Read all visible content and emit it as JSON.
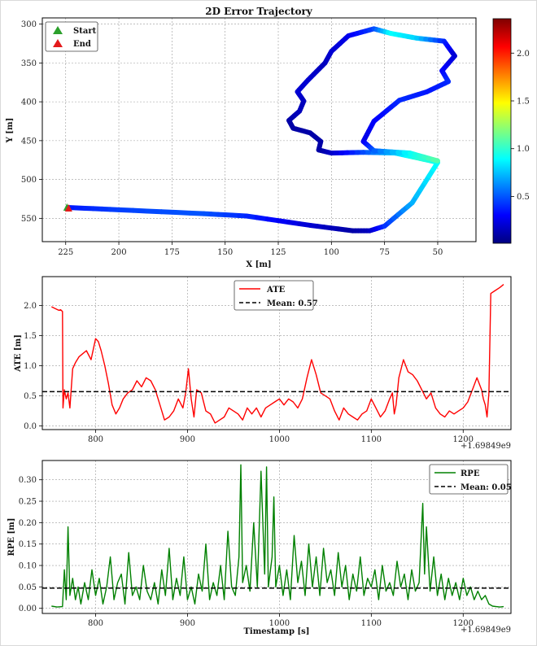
{
  "chart_data": [
    {
      "type": "scatter",
      "title": "2D Error Trajectory",
      "xlabel": "X [m]",
      "ylabel": "Y [m]",
      "xlim": [
        236,
        32
      ],
      "ylim": [
        580,
        292
      ],
      "x_ticks": [
        225,
        200,
        175,
        150,
        125,
        100,
        75,
        50
      ],
      "y_ticks": [
        300,
        350,
        400,
        450,
        500,
        550
      ],
      "grid": true,
      "legend": [
        {
          "label": "Start",
          "color": "#2ca02c",
          "marker": "triangle"
        },
        {
          "label": "End",
          "color": "#e41a1c",
          "marker": "triangle"
        }
      ],
      "legend_position": "top-left",
      "start": {
        "x": 224,
        "y": 536
      },
      "end": {
        "x": 224,
        "y": 537
      },
      "trajectory": [
        {
          "x": 224,
          "y": 536,
          "e": 0.35
        },
        {
          "x": 200,
          "y": 539,
          "e": 0.45
        },
        {
          "x": 160,
          "y": 544,
          "e": 0.5
        },
        {
          "x": 140,
          "y": 547,
          "e": 0.4
        },
        {
          "x": 110,
          "y": 559,
          "e": 0.2
        },
        {
          "x": 90,
          "y": 566,
          "e": 0.1
        },
        {
          "x": 82,
          "y": 566,
          "e": 0.15
        },
        {
          "x": 75,
          "y": 560,
          "e": 0.4
        },
        {
          "x": 62,
          "y": 530,
          "e": 0.7
        },
        {
          "x": 50,
          "y": 478,
          "e": 0.9
        },
        {
          "x": 60,
          "y": 472,
          "e": 1.0
        },
        {
          "x": 70,
          "y": 466,
          "e": 0.8
        },
        {
          "x": 85,
          "y": 465,
          "e": 0.5
        },
        {
          "x": 100,
          "y": 466,
          "e": 0.2
        },
        {
          "x": 106,
          "y": 462,
          "e": 0.1
        },
        {
          "x": 105,
          "y": 451,
          "e": 0.1
        },
        {
          "x": 110,
          "y": 440,
          "e": 0.1
        },
        {
          "x": 118,
          "y": 434,
          "e": 0.1
        },
        {
          "x": 120,
          "y": 424,
          "e": 0.1
        },
        {
          "x": 115,
          "y": 412,
          "e": 0.15
        },
        {
          "x": 113,
          "y": 399,
          "e": 0.15
        },
        {
          "x": 116,
          "y": 387,
          "e": 0.2
        },
        {
          "x": 111,
          "y": 372,
          "e": 0.2
        },
        {
          "x": 103,
          "y": 350,
          "e": 0.15
        },
        {
          "x": 100,
          "y": 335,
          "e": 0.2
        },
        {
          "x": 92,
          "y": 315,
          "e": 0.25
        },
        {
          "x": 80,
          "y": 306,
          "e": 0.45
        },
        {
          "x": 72,
          "y": 312,
          "e": 0.9
        },
        {
          "x": 60,
          "y": 318,
          "e": 0.8
        },
        {
          "x": 47,
          "y": 322,
          "e": 0.4
        },
        {
          "x": 42,
          "y": 341,
          "e": 0.2
        },
        {
          "x": 48,
          "y": 360,
          "e": 0.3
        },
        {
          "x": 45,
          "y": 374,
          "e": 0.4
        },
        {
          "x": 55,
          "y": 387,
          "e": 0.35
        },
        {
          "x": 68,
          "y": 398,
          "e": 0.4
        },
        {
          "x": 80,
          "y": 425,
          "e": 0.3
        },
        {
          "x": 85,
          "y": 451,
          "e": 0.25
        },
        {
          "x": 80,
          "y": 463,
          "e": 0.5
        },
        {
          "x": 63,
          "y": 466,
          "e": 0.9
        },
        {
          "x": 50,
          "y": 476,
          "e": 1.1
        }
      ],
      "colorbar": {
        "label": "",
        "ticks": [
          0.5,
          1.0,
          1.5,
          2.0
        ],
        "range": [
          0.01,
          2.36
        ]
      }
    },
    {
      "type": "line",
      "title": "",
      "xlabel": "",
      "ylabel": "ATE [m]",
      "xlim": [
        742,
        1252
      ],
      "ylim": [
        -0.06,
        2.48
      ],
      "x_ticks": [
        800,
        900,
        1000,
        1100,
        1200
      ],
      "x_tick_labels": [
        "800",
        "900",
        "1000",
        "1100",
        "1200"
      ],
      "y_ticks": [
        0.0,
        0.5,
        1.0,
        1.5,
        2.0
      ],
      "y_tick_labels": [
        "0.0",
        "0.5",
        "1.0",
        "1.5",
        "2.0"
      ],
      "offset_label": "+1.69849e9",
      "grid": true,
      "legend_position": "top-center",
      "series": [
        {
          "name": "ATE",
          "color": "#ff0000",
          "x": [
            752,
            756,
            760,
            762,
            764,
            764.5,
            766,
            768,
            770,
            772,
            775,
            778,
            782,
            786,
            790,
            795,
            800,
            803,
            806,
            810,
            814,
            818,
            822,
            826,
            830,
            835,
            840,
            845,
            850,
            855,
            860,
            865,
            870,
            875,
            880,
            885,
            890,
            895,
            898,
            901,
            904,
            907,
            910,
            915,
            920,
            925,
            930,
            935,
            940,
            945,
            950,
            955,
            960,
            965,
            970,
            975,
            980,
            985,
            990,
            995,
            1000,
            1005,
            1010,
            1015,
            1020,
            1025,
            1030,
            1035,
            1040,
            1045,
            1050,
            1055,
            1060,
            1065,
            1070,
            1075,
            1080,
            1085,
            1090,
            1095,
            1100,
            1105,
            1110,
            1115,
            1120,
            1123,
            1125,
            1127,
            1130,
            1135,
            1140,
            1145,
            1150,
            1155,
            1160,
            1165,
            1170,
            1175,
            1180,
            1185,
            1190,
            1195,
            1200,
            1205,
            1210,
            1215,
            1220,
            1222,
            1224,
            1226,
            1228,
            1230,
            1235,
            1240,
            1244
          ],
          "values": [
            1.98,
            1.95,
            1.92,
            1.93,
            1.9,
            0.3,
            0.6,
            0.45,
            0.55,
            0.3,
            0.95,
            1.05,
            1.15,
            1.2,
            1.25,
            1.1,
            1.45,
            1.4,
            1.25,
            1.0,
            0.7,
            0.35,
            0.2,
            0.3,
            0.45,
            0.55,
            0.6,
            0.75,
            0.65,
            0.8,
            0.75,
            0.6,
            0.35,
            0.1,
            0.15,
            0.25,
            0.45,
            0.3,
            0.55,
            0.95,
            0.45,
            0.15,
            0.6,
            0.55,
            0.25,
            0.2,
            0.05,
            0.1,
            0.15,
            0.3,
            0.25,
            0.2,
            0.1,
            0.3,
            0.2,
            0.3,
            0.15,
            0.3,
            0.35,
            0.4,
            0.45,
            0.35,
            0.45,
            0.4,
            0.3,
            0.45,
            0.8,
            1.1,
            0.85,
            0.55,
            0.5,
            0.45,
            0.25,
            0.1,
            0.3,
            0.2,
            0.15,
            0.1,
            0.2,
            0.25,
            0.45,
            0.3,
            0.15,
            0.25,
            0.45,
            0.55,
            0.2,
            0.35,
            0.8,
            1.1,
            0.9,
            0.85,
            0.75,
            0.6,
            0.45,
            0.55,
            0.3,
            0.2,
            0.15,
            0.25,
            0.2,
            0.25,
            0.3,
            0.4,
            0.6,
            0.8,
            0.6,
            0.45,
            0.35,
            0.15,
            0.55,
            2.2,
            2.25,
            2.3,
            2.35
          ]
        },
        {
          "name": "Mean: 0.57",
          "color": "#000000",
          "style": "dashed",
          "y": 0.57
        }
      ]
    },
    {
      "type": "line",
      "title": "",
      "xlabel": "Timestamp [s]",
      "ylabel": "RPE [m]",
      "xlim": [
        742,
        1252
      ],
      "ylim": [
        -0.012,
        0.345
      ],
      "x_ticks": [
        800,
        900,
        1000,
        1100,
        1200
      ],
      "x_tick_labels": [
        "800",
        "900",
        "1000",
        "1100",
        "1200"
      ],
      "y_ticks": [
        0.0,
        0.05,
        0.1,
        0.15,
        0.2,
        0.25,
        0.3
      ],
      "y_tick_labels": [
        "0.00",
        "0.05",
        "0.10",
        "0.15",
        "0.20",
        "0.25",
        "0.30"
      ],
      "offset_label": "+1.69849e9",
      "grid": true,
      "legend_position": "top-right",
      "series": [
        {
          "name": "RPE",
          "color": "#008000",
          "x": [
            752,
            758,
            764,
            766,
            768,
            770,
            772,
            775,
            778,
            781,
            784,
            788,
            792,
            796,
            800,
            804,
            808,
            812,
            816,
            820,
            824,
            828,
            832,
            836,
            840,
            844,
            848,
            852,
            856,
            860,
            864,
            868,
            872,
            876,
            880,
            884,
            888,
            892,
            896,
            900,
            904,
            908,
            912,
            916,
            920,
            924,
            928,
            932,
            936,
            940,
            944,
            948,
            952,
            956,
            958,
            960,
            964,
            968,
            972,
            976,
            980,
            984,
            986,
            988,
            992,
            994,
            996,
            1000,
            1004,
            1008,
            1012,
            1016,
            1020,
            1024,
            1028,
            1032,
            1036,
            1040,
            1044,
            1048,
            1052,
            1056,
            1060,
            1064,
            1068,
            1072,
            1076,
            1080,
            1084,
            1088,
            1092,
            1096,
            1100,
            1104,
            1108,
            1112,
            1116,
            1120,
            1124,
            1128,
            1132,
            1136,
            1140,
            1144,
            1148,
            1152,
            1156,
            1158,
            1160,
            1164,
            1168,
            1172,
            1176,
            1180,
            1184,
            1188,
            1192,
            1196,
            1200,
            1204,
            1208,
            1212,
            1216,
            1220,
            1224,
            1228,
            1232,
            1236,
            1240,
            1244
          ],
          "values": [
            0.005,
            0.003,
            0.004,
            0.09,
            0.02,
            0.19,
            0.03,
            0.07,
            0.02,
            0.05,
            0.01,
            0.06,
            0.02,
            0.09,
            0.03,
            0.07,
            0.01,
            0.05,
            0.12,
            0.02,
            0.06,
            0.08,
            0.01,
            0.13,
            0.03,
            0.05,
            0.02,
            0.1,
            0.04,
            0.02,
            0.06,
            0.01,
            0.09,
            0.03,
            0.14,
            0.02,
            0.07,
            0.03,
            0.12,
            0.02,
            0.05,
            0.01,
            0.08,
            0.04,
            0.15,
            0.02,
            0.06,
            0.03,
            0.1,
            0.02,
            0.18,
            0.05,
            0.03,
            0.12,
            0.335,
            0.06,
            0.1,
            0.04,
            0.2,
            0.05,
            0.32,
            0.08,
            0.33,
            0.05,
            0.12,
            0.26,
            0.05,
            0.1,
            0.03,
            0.09,
            0.02,
            0.17,
            0.06,
            0.11,
            0.03,
            0.15,
            0.05,
            0.12,
            0.03,
            0.14,
            0.06,
            0.09,
            0.03,
            0.13,
            0.05,
            0.1,
            0.02,
            0.08,
            0.04,
            0.12,
            0.03,
            0.07,
            0.05,
            0.09,
            0.02,
            0.1,
            0.04,
            0.06,
            0.03,
            0.11,
            0.05,
            0.08,
            0.02,
            0.09,
            0.04,
            0.06,
            0.245,
            0.08,
            0.19,
            0.04,
            0.12,
            0.03,
            0.08,
            0.02,
            0.07,
            0.03,
            0.06,
            0.02,
            0.07,
            0.03,
            0.05,
            0.02,
            0.04,
            0.02,
            0.03,
            0.01,
            0.005,
            0.004,
            0.003,
            0.004
          ]
        },
        {
          "name": "Mean: 0.05",
          "color": "#000000",
          "style": "dashed",
          "y": 0.047
        }
      ]
    }
  ]
}
